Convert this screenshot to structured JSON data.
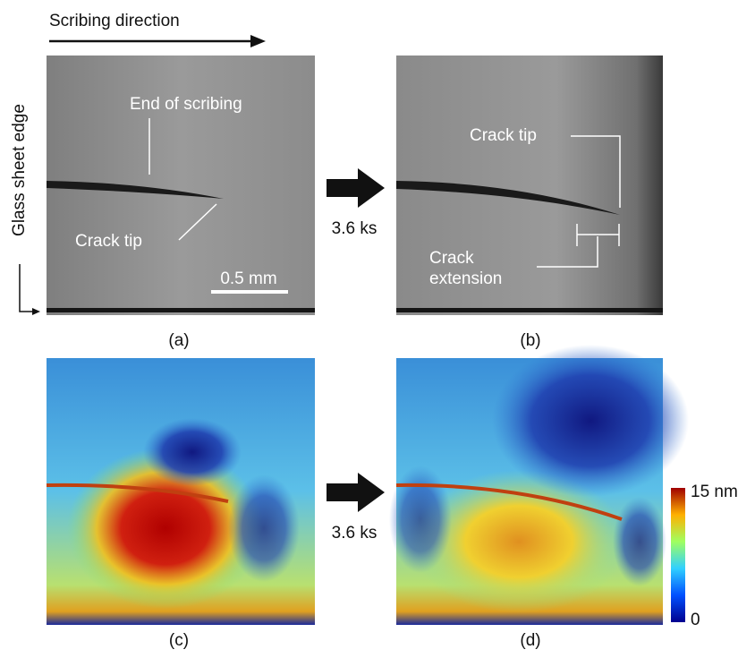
{
  "header": {
    "direction_label": "Scribing direction",
    "edge_label": "Glass sheet edge"
  },
  "panels": [
    {
      "label": "(a)",
      "annotations": [
        "End of scribing",
        "Crack tip"
      ],
      "scale_bar": "0.5 mm"
    },
    {
      "label": "(b)",
      "annotations": [
        "Crack tip",
        "Crack",
        "extension"
      ]
    },
    {
      "label": "(c)"
    },
    {
      "label": "(d)"
    }
  ],
  "transitions": [
    "3.6 ks",
    "3.6 ks"
  ],
  "colorbar": {
    "max_label": "15 nm",
    "min_label": "0"
  }
}
